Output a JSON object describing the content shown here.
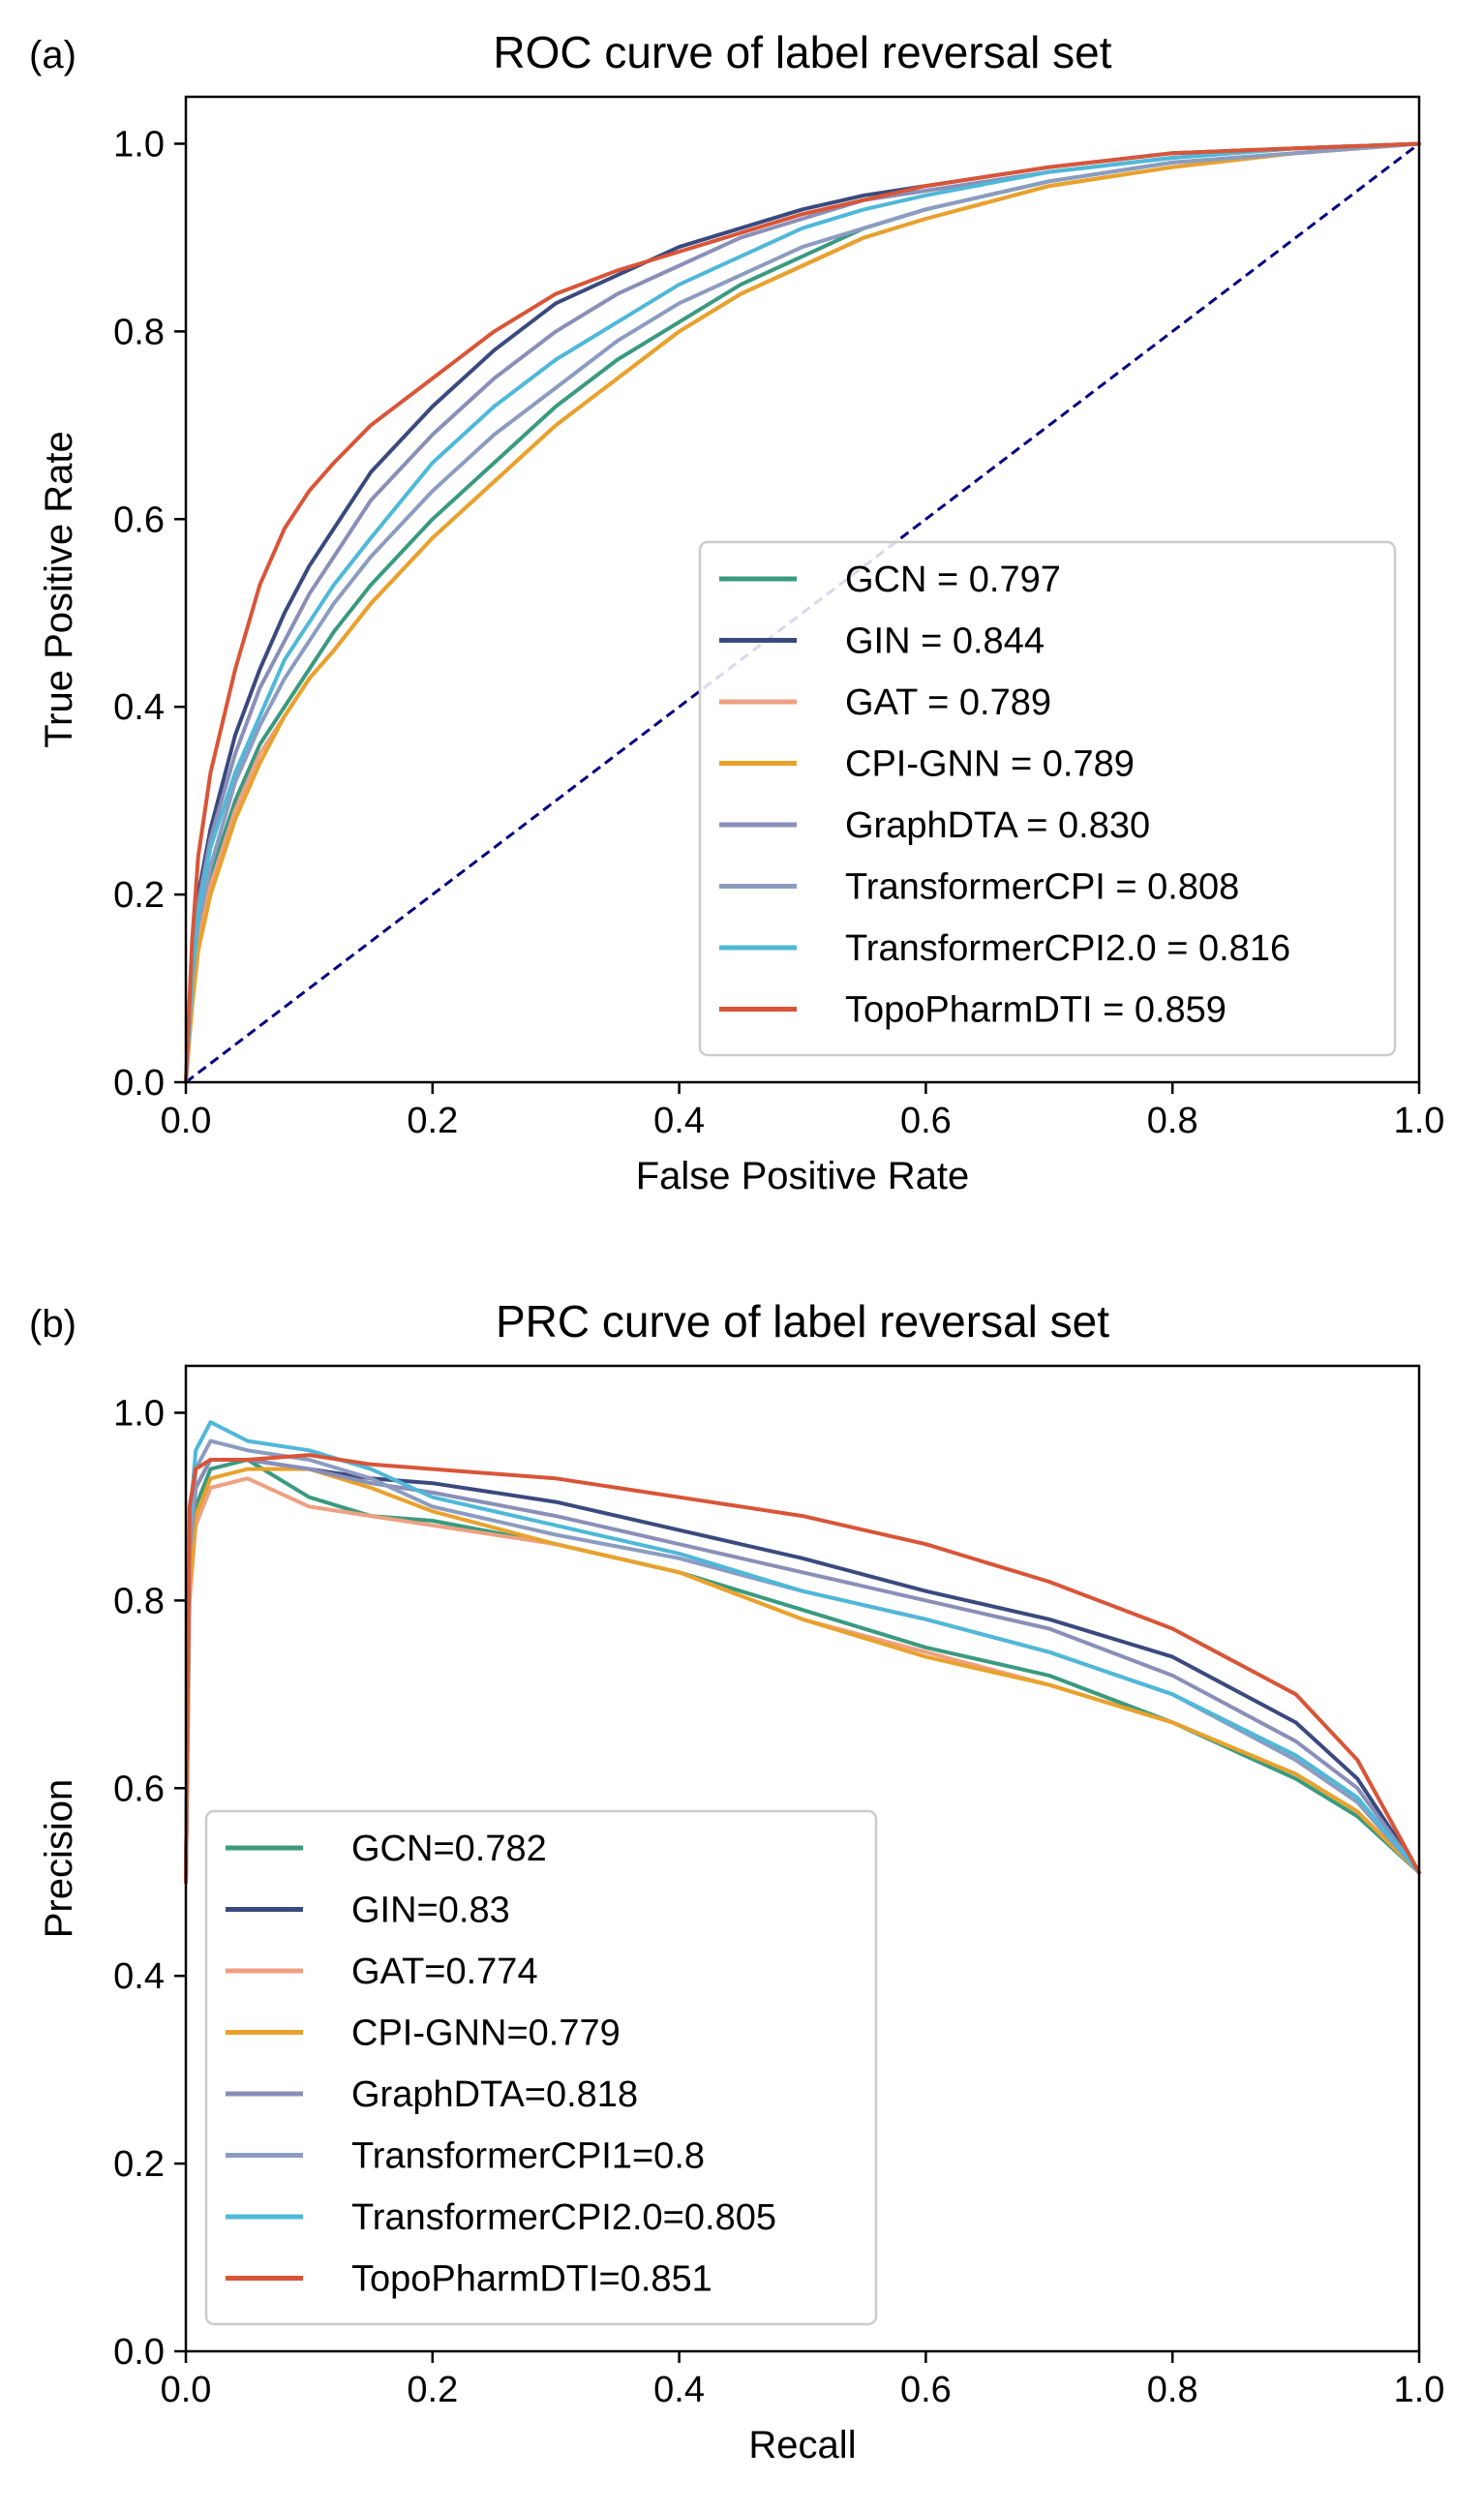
{
  "chart_data": [
    {
      "panel": "(a)",
      "type": "line",
      "title": "ROC curve of label reversal set",
      "xlabel": "False Positive Rate",
      "ylabel": "True Positive Rate",
      "xlim": [
        0.0,
        1.0
      ],
      "ylim": [
        0.0,
        1.05
      ],
      "xticks": [
        "0.0",
        "0.2",
        "0.4",
        "0.6",
        "0.8",
        "1.0"
      ],
      "yticks": [
        "0.0",
        "0.2",
        "0.4",
        "0.6",
        "0.8",
        "1.0"
      ],
      "grid": false,
      "legend_position": "lower-right",
      "diagonal": {
        "x": [
          0,
          1
        ],
        "y": [
          0,
          1
        ],
        "color": "#000080",
        "style": "dashed"
      },
      "series": [
        {
          "name": "GCN = 0.797",
          "color": "#3A9A80",
          "x": [
            0,
            0.005,
            0.01,
            0.02,
            0.04,
            0.06,
            0.08,
            0.1,
            0.12,
            0.15,
            0.2,
            0.25,
            0.3,
            0.35,
            0.4,
            0.45,
            0.5,
            0.55,
            0.6,
            0.7,
            0.8,
            0.9,
            1.0
          ],
          "y": [
            0,
            0.1,
            0.16,
            0.22,
            0.3,
            0.36,
            0.4,
            0.44,
            0.48,
            0.53,
            0.6,
            0.66,
            0.72,
            0.77,
            0.81,
            0.85,
            0.88,
            0.91,
            0.93,
            0.96,
            0.98,
            0.99,
            1.0
          ]
        },
        {
          "name": "GIN = 0.844",
          "color": "#3A4A7E",
          "x": [
            0,
            0.005,
            0.01,
            0.02,
            0.04,
            0.06,
            0.08,
            0.1,
            0.12,
            0.15,
            0.2,
            0.25,
            0.3,
            0.35,
            0.4,
            0.45,
            0.5,
            0.55,
            0.6,
            0.7,
            0.8,
            0.9,
            1.0
          ],
          "y": [
            0,
            0.13,
            0.2,
            0.27,
            0.37,
            0.44,
            0.5,
            0.55,
            0.59,
            0.65,
            0.72,
            0.78,
            0.83,
            0.86,
            0.89,
            0.91,
            0.93,
            0.945,
            0.955,
            0.975,
            0.99,
            0.995,
            1.0
          ]
        },
        {
          "name": "GAT = 0.789",
          "color": "#EFA082",
          "x": [
            0,
            0.005,
            0.01,
            0.02,
            0.04,
            0.06,
            0.08,
            0.1,
            0.12,
            0.15,
            0.2,
            0.25,
            0.3,
            0.35,
            0.4,
            0.45,
            0.5,
            0.55,
            0.6,
            0.7,
            0.8,
            0.9,
            1.0
          ],
          "y": [
            0,
            0.09,
            0.15,
            0.21,
            0.29,
            0.35,
            0.39,
            0.43,
            0.46,
            0.51,
            0.58,
            0.64,
            0.7,
            0.75,
            0.8,
            0.84,
            0.87,
            0.9,
            0.92,
            0.955,
            0.975,
            0.99,
            1.0
          ]
        },
        {
          "name": "CPI-GNN = 0.789",
          "color": "#E8A22C",
          "x": [
            0,
            0.005,
            0.01,
            0.02,
            0.04,
            0.06,
            0.08,
            0.1,
            0.12,
            0.15,
            0.2,
            0.25,
            0.3,
            0.35,
            0.4,
            0.45,
            0.5,
            0.55,
            0.6,
            0.7,
            0.8,
            0.9,
            1.0
          ],
          "y": [
            0,
            0.08,
            0.14,
            0.2,
            0.28,
            0.34,
            0.39,
            0.43,
            0.46,
            0.51,
            0.58,
            0.64,
            0.7,
            0.75,
            0.8,
            0.84,
            0.87,
            0.9,
            0.92,
            0.955,
            0.975,
            0.99,
            1.0
          ]
        },
        {
          "name": "GraphDTA = 0.830",
          "color": "#8A8FB8",
          "x": [
            0,
            0.005,
            0.01,
            0.02,
            0.04,
            0.06,
            0.08,
            0.1,
            0.12,
            0.15,
            0.2,
            0.25,
            0.3,
            0.35,
            0.4,
            0.45,
            0.5,
            0.55,
            0.6,
            0.7,
            0.8,
            0.9,
            1.0
          ],
          "y": [
            0,
            0.12,
            0.19,
            0.26,
            0.35,
            0.42,
            0.47,
            0.52,
            0.56,
            0.62,
            0.69,
            0.75,
            0.8,
            0.84,
            0.87,
            0.9,
            0.92,
            0.94,
            0.95,
            0.97,
            0.985,
            0.995,
            1.0
          ]
        },
        {
          "name": "TransformerCPI = 0.808",
          "color": "#8C9CC0",
          "x": [
            0,
            0.005,
            0.01,
            0.02,
            0.04,
            0.06,
            0.08,
            0.1,
            0.12,
            0.15,
            0.2,
            0.25,
            0.3,
            0.35,
            0.4,
            0.45,
            0.5,
            0.55,
            0.6,
            0.7,
            0.8,
            0.9,
            1.0
          ],
          "y": [
            0,
            0.11,
            0.17,
            0.23,
            0.32,
            0.38,
            0.43,
            0.47,
            0.51,
            0.56,
            0.63,
            0.69,
            0.74,
            0.79,
            0.83,
            0.86,
            0.89,
            0.91,
            0.93,
            0.96,
            0.98,
            0.99,
            1.0
          ]
        },
        {
          "name": "TransformerCPI2.0 = 0.816",
          "color": "#4FB8D8",
          "x": [
            0,
            0.005,
            0.01,
            0.02,
            0.04,
            0.06,
            0.08,
            0.1,
            0.12,
            0.15,
            0.2,
            0.25,
            0.3,
            0.35,
            0.4,
            0.45,
            0.5,
            0.55,
            0.6,
            0.7,
            0.8,
            0.9,
            1.0
          ],
          "y": [
            0,
            0.11,
            0.18,
            0.25,
            0.33,
            0.39,
            0.45,
            0.49,
            0.53,
            0.58,
            0.66,
            0.72,
            0.77,
            0.81,
            0.85,
            0.88,
            0.91,
            0.93,
            0.945,
            0.97,
            0.985,
            0.995,
            1.0
          ]
        },
        {
          "name": "TopoPharmDTI = 0.859",
          "color": "#D95538",
          "x": [
            0,
            0.005,
            0.01,
            0.02,
            0.04,
            0.06,
            0.08,
            0.1,
            0.12,
            0.15,
            0.2,
            0.25,
            0.3,
            0.35,
            0.4,
            0.45,
            0.5,
            0.55,
            0.6,
            0.7,
            0.8,
            0.9,
            1.0
          ],
          "y": [
            0,
            0.15,
            0.24,
            0.33,
            0.44,
            0.53,
            0.59,
            0.63,
            0.66,
            0.7,
            0.75,
            0.8,
            0.84,
            0.865,
            0.885,
            0.905,
            0.925,
            0.94,
            0.955,
            0.975,
            0.99,
            0.995,
            1.0
          ]
        }
      ]
    },
    {
      "panel": "(b)",
      "type": "line",
      "title": "PRC curve of label reversal set",
      "xlabel": "Recall",
      "ylabel": "Precision",
      "xlim": [
        0.0,
        1.0
      ],
      "ylim": [
        0.0,
        1.05
      ],
      "xticks": [
        "0.0",
        "0.2",
        "0.4",
        "0.6",
        "0.8",
        "1.0"
      ],
      "yticks": [
        "0.0",
        "0.2",
        "0.4",
        "0.6",
        "0.8",
        "1.0"
      ],
      "grid": false,
      "legend_position": "lower-left",
      "series": [
        {
          "name": "GCN=0.782",
          "color": "#3A9A80",
          "x": [
            0.0,
            0.003,
            0.008,
            0.02,
            0.05,
            0.1,
            0.15,
            0.2,
            0.3,
            0.4,
            0.5,
            0.6,
            0.7,
            0.8,
            0.9,
            0.95,
            1.0
          ],
          "y": [
            0.5,
            0.82,
            0.9,
            0.94,
            0.95,
            0.91,
            0.89,
            0.885,
            0.86,
            0.83,
            0.79,
            0.75,
            0.72,
            0.67,
            0.61,
            0.57,
            0.51
          ]
        },
        {
          "name": "GIN=0.83",
          "color": "#3A4A7E",
          "x": [
            0.0,
            0.003,
            0.008,
            0.02,
            0.05,
            0.1,
            0.15,
            0.2,
            0.3,
            0.4,
            0.5,
            0.6,
            0.7,
            0.8,
            0.9,
            0.95,
            1.0
          ],
          "y": [
            0.5,
            0.86,
            0.92,
            0.95,
            0.95,
            0.94,
            0.93,
            0.925,
            0.905,
            0.875,
            0.845,
            0.81,
            0.78,
            0.74,
            0.67,
            0.61,
            0.51
          ]
        },
        {
          "name": "GAT=0.774",
          "color": "#EFA082",
          "x": [
            0.0,
            0.003,
            0.008,
            0.02,
            0.05,
            0.1,
            0.15,
            0.2,
            0.3,
            0.4,
            0.5,
            0.6,
            0.7,
            0.8,
            0.9,
            0.95,
            1.0
          ],
          "y": [
            0.5,
            0.8,
            0.88,
            0.92,
            0.93,
            0.9,
            0.89,
            0.88,
            0.86,
            0.83,
            0.78,
            0.745,
            0.71,
            0.67,
            0.615,
            0.575,
            0.51
          ]
        },
        {
          "name": "CPI-GNN=0.779",
          "color": "#E8A22C",
          "x": [
            0.0,
            0.003,
            0.008,
            0.02,
            0.05,
            0.1,
            0.15,
            0.2,
            0.3,
            0.4,
            0.5,
            0.6,
            0.7,
            0.8,
            0.9,
            0.95,
            1.0
          ],
          "y": [
            0.5,
            0.81,
            0.89,
            0.93,
            0.94,
            0.94,
            0.92,
            0.895,
            0.86,
            0.83,
            0.78,
            0.74,
            0.71,
            0.67,
            0.615,
            0.575,
            0.51
          ]
        },
        {
          "name": "GraphDTA=0.818",
          "color": "#8A8FB8",
          "x": [
            0.0,
            0.003,
            0.008,
            0.02,
            0.05,
            0.1,
            0.15,
            0.2,
            0.3,
            0.4,
            0.5,
            0.6,
            0.7,
            0.8,
            0.9,
            0.95,
            1.0
          ],
          "y": [
            0.5,
            0.85,
            0.92,
            0.95,
            0.95,
            0.94,
            0.925,
            0.915,
            0.89,
            0.86,
            0.83,
            0.8,
            0.77,
            0.72,
            0.65,
            0.6,
            0.51
          ]
        },
        {
          "name": "TransformerCPI1=0.8",
          "color": "#8C9CC0",
          "x": [
            0.0,
            0.003,
            0.008,
            0.02,
            0.05,
            0.1,
            0.15,
            0.2,
            0.3,
            0.4,
            0.5,
            0.6,
            0.7,
            0.8,
            0.9,
            0.95,
            1.0
          ],
          "y": [
            0.5,
            0.86,
            0.94,
            0.97,
            0.96,
            0.95,
            0.93,
            0.9,
            0.87,
            0.845,
            0.81,
            0.78,
            0.745,
            0.7,
            0.63,
            0.585,
            0.51
          ]
        },
        {
          "name": "TransformerCPI2.0=0.805",
          "color": "#4FB8D8",
          "x": [
            0.0,
            0.003,
            0.008,
            0.02,
            0.05,
            0.1,
            0.15,
            0.2,
            0.3,
            0.4,
            0.5,
            0.6,
            0.7,
            0.8,
            0.9,
            0.95,
            1.0
          ],
          "y": [
            0.5,
            0.88,
            0.96,
            0.99,
            0.97,
            0.96,
            0.94,
            0.91,
            0.88,
            0.85,
            0.81,
            0.78,
            0.745,
            0.7,
            0.635,
            0.59,
            0.51
          ]
        },
        {
          "name": "TopoPharmDTI=0.851",
          "color": "#D95538",
          "x": [
            0.0,
            0.003,
            0.008,
            0.02,
            0.05,
            0.1,
            0.15,
            0.2,
            0.3,
            0.4,
            0.5,
            0.6,
            0.7,
            0.8,
            0.9,
            0.95,
            1.0
          ],
          "y": [
            0.5,
            0.9,
            0.94,
            0.95,
            0.95,
            0.955,
            0.945,
            0.94,
            0.93,
            0.91,
            0.89,
            0.86,
            0.82,
            0.77,
            0.7,
            0.63,
            0.51
          ]
        }
      ]
    }
  ]
}
